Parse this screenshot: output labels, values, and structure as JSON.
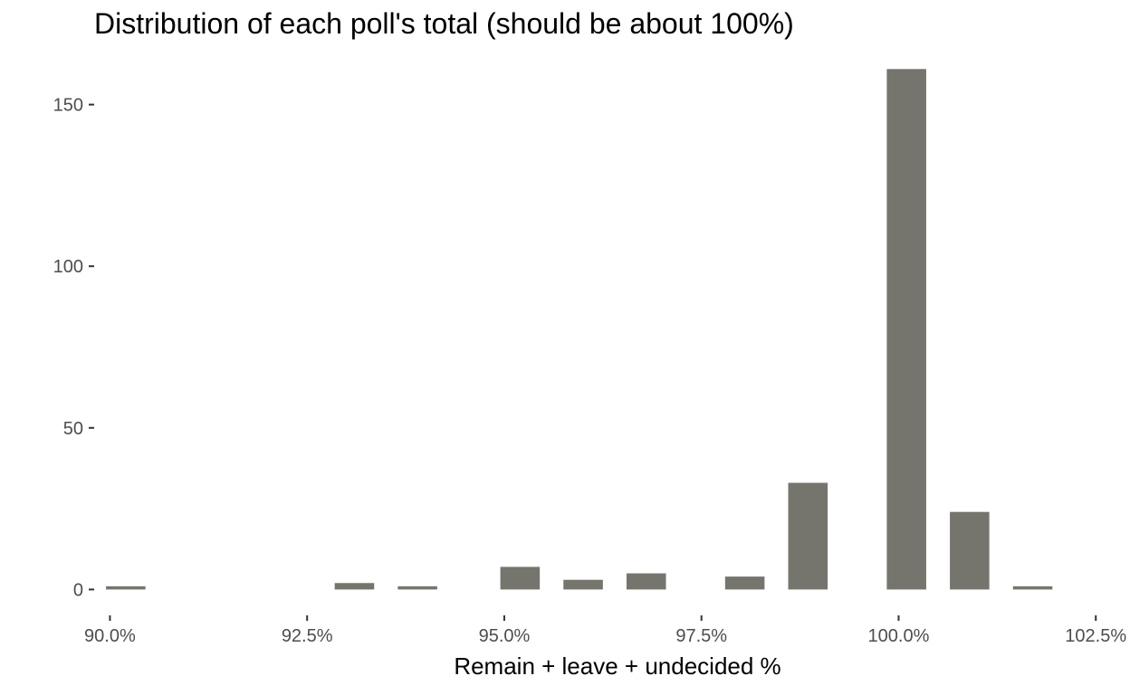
{
  "chart_data": {
    "type": "bar",
    "title": "Distribution of each poll's total (should be about 100%)",
    "xlabel": "Remain + leave + undecided %",
    "ylabel": "",
    "bar_color": "#75756d",
    "bar_width": 0.5,
    "xlim": [
      89.8,
      102.75
    ],
    "ylim": [
      -8,
      165
    ],
    "x_ticks": [
      {
        "value": 90.0,
        "label": "90.0%"
      },
      {
        "value": 92.5,
        "label": "92.5%"
      },
      {
        "value": 95.0,
        "label": "95.0%"
      },
      {
        "value": 97.5,
        "label": "97.5%"
      },
      {
        "value": 100.0,
        "label": "100.0%"
      },
      {
        "value": 102.5,
        "label": "102.5%"
      }
    ],
    "y_ticks": [
      {
        "value": 0,
        "label": "0"
      },
      {
        "value": 50,
        "label": "50"
      },
      {
        "value": 100,
        "label": "100"
      },
      {
        "value": 150,
        "label": "150"
      }
    ],
    "grid": false,
    "bars": [
      {
        "x": 90.2,
        "value": 1
      },
      {
        "x": 93.1,
        "value": 2
      },
      {
        "x": 93.9,
        "value": 1
      },
      {
        "x": 95.2,
        "value": 7
      },
      {
        "x": 96.0,
        "value": 3
      },
      {
        "x": 96.8,
        "value": 5
      },
      {
        "x": 98.05,
        "value": 4
      },
      {
        "x": 98.85,
        "value": 33
      },
      {
        "x": 100.1,
        "value": 161
      },
      {
        "x": 100.9,
        "value": 24
      },
      {
        "x": 101.7,
        "value": 1
      }
    ]
  }
}
